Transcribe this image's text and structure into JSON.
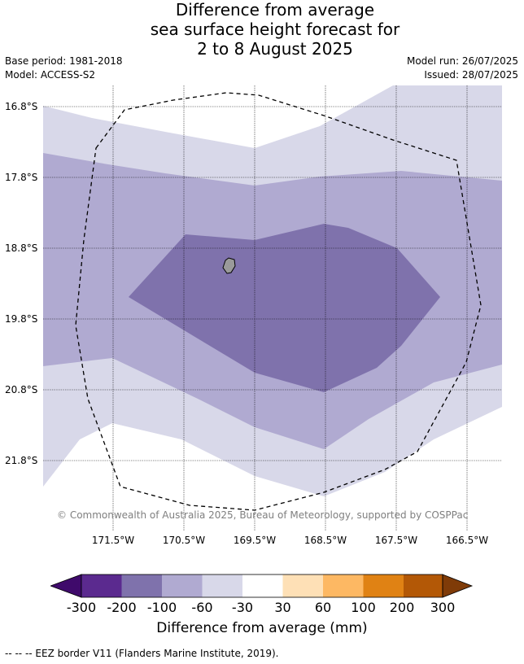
{
  "title": {
    "line1": "Difference from average",
    "line2": "sea surface height forecast for",
    "line3": "2 to 8 August 2025"
  },
  "meta": {
    "base_period": "Base period: 1981-2018",
    "model": "Model: ACCESS-S2",
    "model_run": "Model run: 26/07/2025",
    "issued": "Issued: 28/07/2025"
  },
  "map": {
    "latitude_labels": [
      "16.8°S",
      "17.8°S",
      "18.8°S",
      "19.8°S",
      "20.8°S",
      "21.8°S"
    ],
    "longitude_labels": [
      "171.5°W",
      "170.5°W",
      "169.5°W",
      "168.5°W",
      "167.5°W",
      "166.5°W"
    ],
    "copyright": "© Commonwealth of Australia 2025, Bureau of Meteorology, supported by COSPPac",
    "colors": {
      "band_-30_to_-60": "#d8d8e9",
      "band_-60_to_-100": "#b0aad1",
      "band_-100_to_-200": "#7f72ac",
      "land": "#9a9a9a",
      "eez_border": "#000000"
    }
  },
  "colorbar": {
    "ticks": [
      "-300",
      "-200",
      "-100",
      "-60",
      "-30",
      "30",
      "60",
      "100",
      "200",
      "300"
    ],
    "label": "Difference from average (mm)",
    "colors": [
      "#3f0a6b",
      "#5b2a8f",
      "#7f72ac",
      "#b0aad1",
      "#d8d8e9",
      "#ffffff",
      "#fee0b6",
      "#fdb863",
      "#e08214",
      "#b35806",
      "#7f3b08"
    ]
  },
  "footnote": "-- -- -- EEZ border V11 (Flanders Marine Institute, 2019)."
}
